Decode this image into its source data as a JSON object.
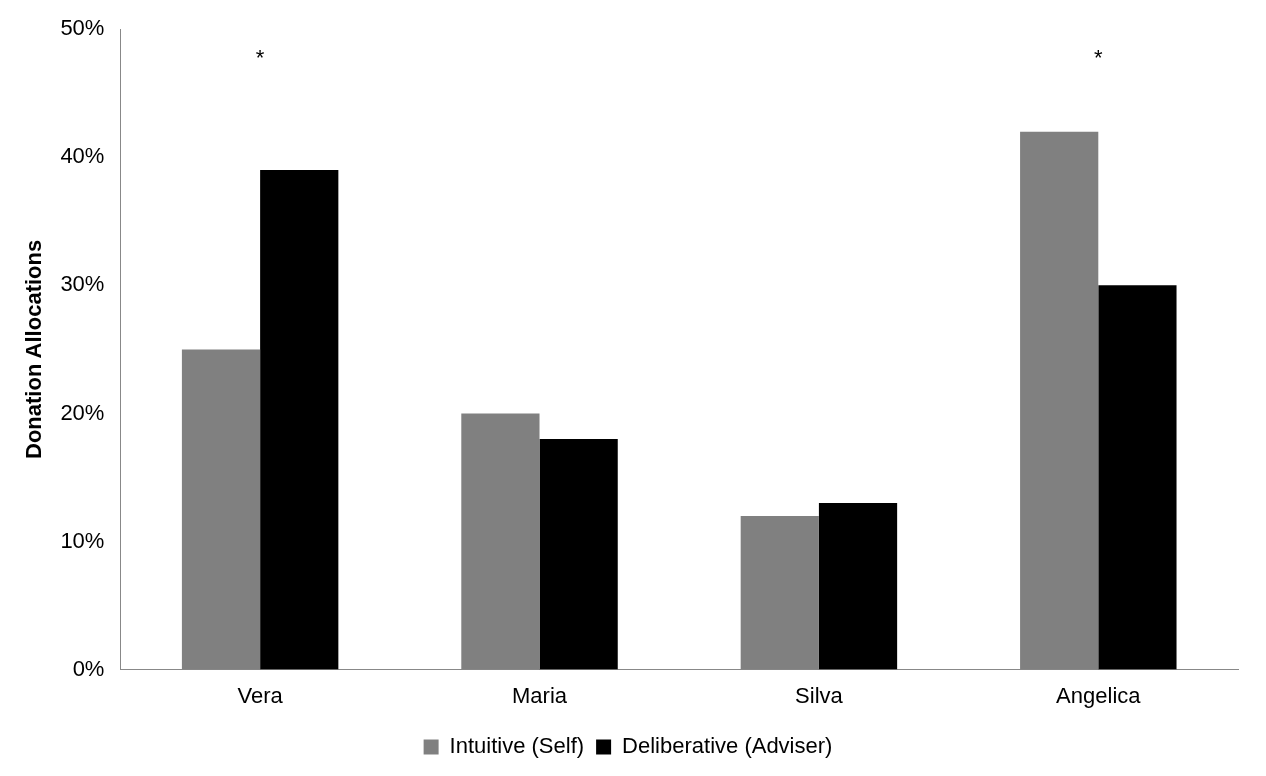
{
  "chart_data": {
    "type": "bar",
    "ylabel": "Donation Allocations",
    "categories": [
      "Vera",
      "Maria",
      "Silva",
      "Angelica"
    ],
    "series": [
      {
        "name": "Intuitive (Self)",
        "color": "#808080",
        "values": [
          25,
          20,
          12,
          42
        ]
      },
      {
        "name": "Deliberative (Adviser)",
        "color": "#000000",
        "values": [
          39,
          18,
          13,
          30
        ]
      }
    ],
    "ylim": [
      0,
      50
    ],
    "yticks": [
      {
        "value": 0,
        "label": "0%"
      },
      {
        "value": 10,
        "label": "10%"
      },
      {
        "value": 20,
        "label": "20%"
      },
      {
        "value": 30,
        "label": "30%"
      },
      {
        "value": 40,
        "label": "40%"
      },
      {
        "value": 50,
        "label": "50%"
      }
    ],
    "annotations": [
      "*",
      "*"
    ],
    "grid": false,
    "legend": "bottom"
  }
}
